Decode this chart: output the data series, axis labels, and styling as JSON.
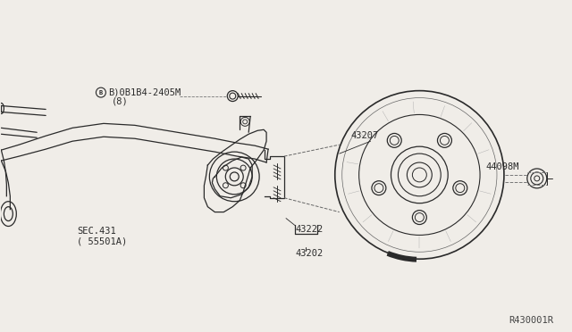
{
  "bg_color": "#f0ede8",
  "line_color": "#2a2a2a",
  "diagram_id": "R430001R",
  "labels": {
    "bolt_top": "B)0B1B4-2405M",
    "bolt_top_sub": "(8)",
    "sec431": "SEC.431",
    "sec431_sub": "( 55501A)",
    "part43207": "43207",
    "part44098": "44098M",
    "part43222": "43222",
    "part43202": "43202"
  },
  "figsize": [
    6.4,
    3.72
  ],
  "dpi": 100
}
